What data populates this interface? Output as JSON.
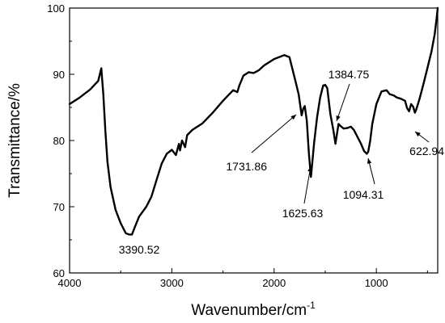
{
  "chart_data": {
    "type": "line",
    "xlabel": "Wavenumber/cm",
    "xlabel_sup": "-1",
    "ylabel": "Transmittance/%",
    "xlim": [
      4000,
      400
    ],
    "ylim": [
      60,
      100
    ],
    "x_reversed": true,
    "x_ticks": [
      4000,
      3000,
      2000,
      1000
    ],
    "y_ticks": [
      60,
      70,
      80,
      90,
      100
    ],
    "grid": false,
    "series": [
      {
        "x": [
          4000,
          3900,
          3800,
          3720,
          3690,
          3670,
          3650,
          3630,
          3600,
          3550,
          3500,
          3450,
          3420,
          3390,
          3360,
          3320,
          3250,
          3200,
          3150,
          3100,
          3050,
          3000,
          2960,
          2930,
          2920,
          2900,
          2870,
          2850,
          2800,
          2700,
          2600,
          2500,
          2400,
          2360,
          2340,
          2300,
          2250,
          2200,
          2150,
          2100,
          2000,
          1900,
          1850,
          1800,
          1760,
          1731,
          1715,
          1700,
          1680,
          1660,
          1640,
          1626,
          1610,
          1580,
          1550,
          1520,
          1500,
          1480,
          1450,
          1420,
          1400,
          1385,
          1370,
          1350,
          1320,
          1280,
          1250,
          1220,
          1200,
          1150,
          1120,
          1094,
          1080,
          1060,
          1040,
          1000,
          950,
          900,
          870,
          830,
          800,
          760,
          720,
          700,
          680,
          660,
          640,
          623,
          610,
          580,
          540,
          500,
          460,
          430,
          410,
          400
        ],
        "y": [
          85.5,
          86.5,
          87.7,
          89.0,
          90.9,
          87.0,
          81.5,
          76.8,
          73.0,
          69.5,
          67.5,
          66.0,
          65.8,
          65.8,
          67.0,
          68.5,
          70.0,
          71.5,
          74.0,
          76.5,
          78.0,
          78.6,
          77.8,
          79.5,
          78.5,
          80.0,
          79.0,
          80.8,
          81.6,
          82.6,
          84.2,
          86.0,
          87.6,
          87.3,
          88.3,
          89.8,
          90.3,
          90.2,
          90.6,
          91.3,
          92.3,
          92.9,
          92.6,
          89.5,
          87.0,
          83.8,
          84.8,
          85.2,
          83.0,
          78.0,
          74.5,
          76.7,
          79.5,
          83.5,
          86.5,
          88.3,
          88.4,
          87.9,
          84.0,
          81.5,
          79.5,
          81.0,
          82.5,
          82.2,
          81.8,
          81.9,
          82.1,
          81.6,
          81.0,
          79.5,
          78.4,
          78.0,
          78.3,
          80.0,
          82.5,
          85.5,
          87.4,
          87.6,
          87.0,
          86.8,
          86.5,
          86.3,
          86.0,
          84.9,
          84.4,
          85.5,
          85.1,
          84.2,
          84.7,
          86.2,
          88.5,
          91.0,
          93.5,
          96.0,
          98.5,
          100.0
        ]
      }
    ],
    "annotations": [
      {
        "text": "3390.52",
        "x": 3390.52
      },
      {
        "text": "1731.86",
        "x": 1731.86
      },
      {
        "text": "1625.63",
        "x": 1625.63
      },
      {
        "text": "1384.75",
        "x": 1384.75
      },
      {
        "text": "1094.31",
        "x": 1094.31
      },
      {
        "text": "622.94",
        "x": 622.94
      }
    ]
  }
}
